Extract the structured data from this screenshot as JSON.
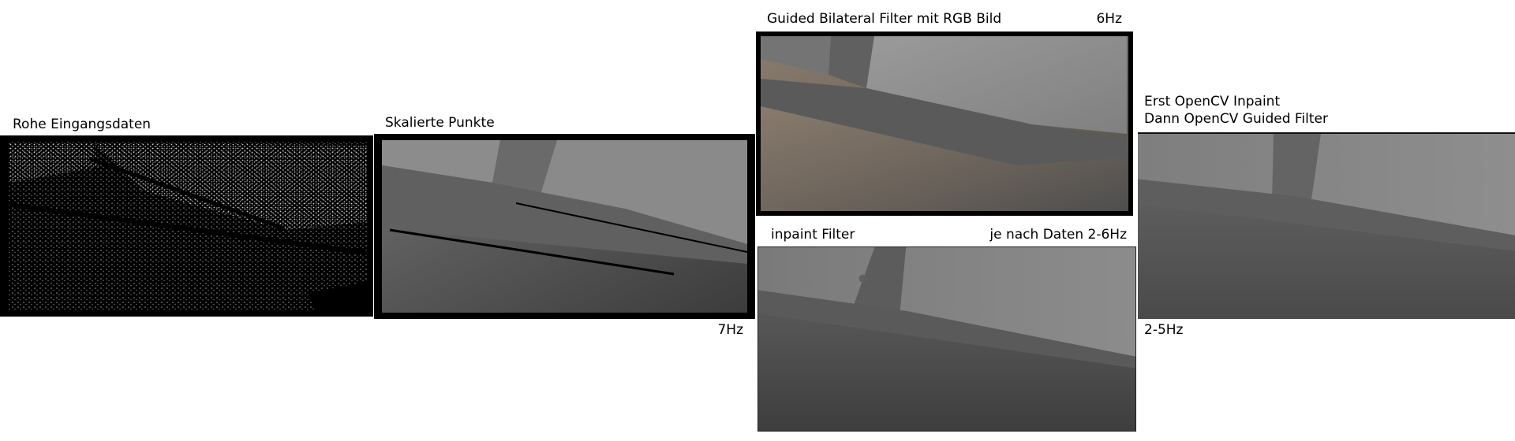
{
  "panels": [
    {
      "title": "Rohe Eingangsdaten",
      "rate": ""
    },
    {
      "title": "Skalierte Punkte",
      "rate": "7Hz"
    },
    {
      "title": "Guided Bilateral Filter mit RGB Bild",
      "rate": "6Hz"
    },
    {
      "title": "inpaint Filter",
      "rate": "je nach Daten 2-6Hz"
    },
    {
      "title_line1": "Erst OpenCV Inpaint",
      "title_line2": "Dann OpenCV Guided Filter",
      "rate": "2-5Hz"
    }
  ]
}
